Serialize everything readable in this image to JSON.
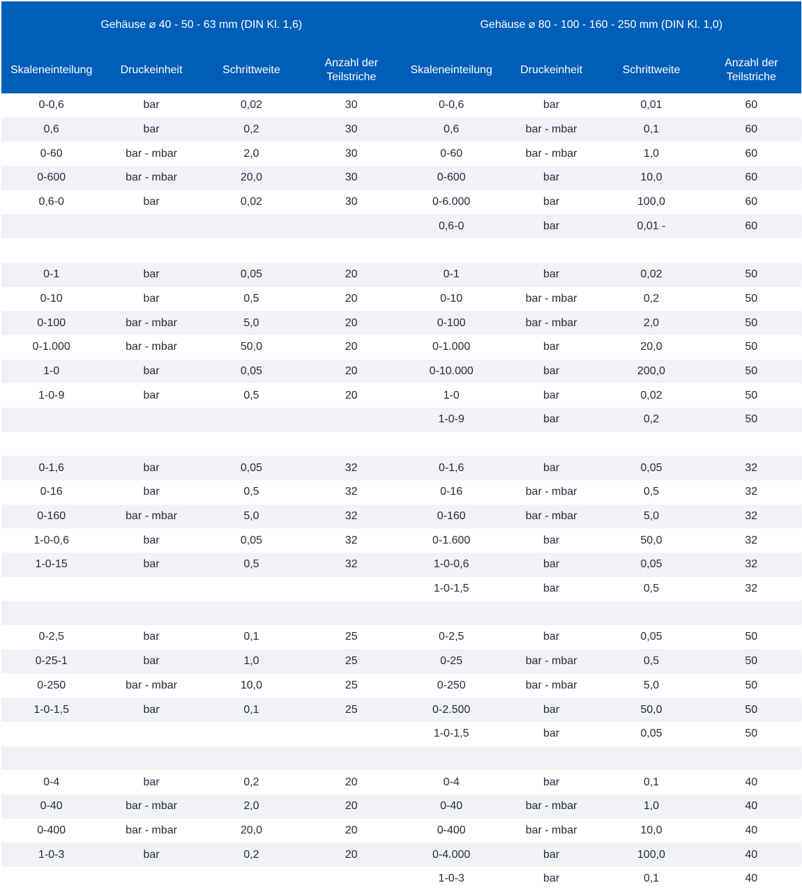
{
  "header": {
    "group_left": "Gehäuse ⌀ 40 - 50 - 63 mm (DIN Kl. 1,6)",
    "group_right": "Gehäuse ⌀ 80 - 100 - 160 - 250 mm (DIN Kl. 1,0)",
    "columns": [
      "Skaleneinteilung",
      "Druckeinheit",
      "Schrittweite",
      "Anzahl der Teilstriche",
      "Skaleneinteilung",
      "Druckeinheit",
      "Schrittweite",
      "Anzahl der Teilstriche"
    ]
  },
  "colors": {
    "header_bg": "#005eb8",
    "stripe": "#f0f2f7",
    "text": "#1d2b3a"
  },
  "rows": [
    [
      "0-0,6",
      "bar",
      "0,02",
      "30",
      "0-0,6",
      "bar",
      "0,01",
      "60"
    ],
    [
      "0,6",
      "bar",
      "0,2",
      "30",
      "0,6",
      "bar - mbar",
      "0,1",
      "60"
    ],
    [
      "0-60",
      "bar - mbar",
      "2,0",
      "30",
      "0-60",
      "bar - mbar",
      "1,0",
      "60"
    ],
    [
      "0-600",
      "bar - mbar",
      "20,0",
      "30",
      "0-600",
      "bar",
      "10,0",
      "60"
    ],
    [
      "0,6-0",
      "bar",
      "0,02",
      "30",
      "0-6.000",
      "bar",
      "100,0",
      "60"
    ],
    [
      "",
      "",
      "",
      "",
      "0,6-0",
      "bar",
      "0,01 -",
      "60"
    ],
    [
      "",
      "",
      "",
      "",
      "",
      "",
      "",
      ""
    ],
    [
      "0-1",
      "bar",
      "0,05",
      "20",
      "0-1",
      "bar",
      "0,02",
      "50"
    ],
    [
      "0-10",
      "bar",
      "0,5",
      "20",
      "0-10",
      "bar - mbar",
      "0,2",
      "50"
    ],
    [
      "0-100",
      "bar - mbar",
      "5,0",
      "20",
      "0-100",
      "bar - mbar",
      "2,0",
      "50"
    ],
    [
      "0-1.000",
      "bar - mbar",
      "50,0",
      "20",
      "0-1.000",
      "bar",
      "20,0",
      "50"
    ],
    [
      "1-0",
      "bar",
      "0,05",
      "20",
      "0-10.000",
      "bar",
      "200,0",
      "50"
    ],
    [
      "1-0-9",
      "bar",
      "0,5",
      "20",
      "1-0",
      "bar",
      "0,02",
      "50"
    ],
    [
      "",
      "",
      "",
      "",
      "1-0-9",
      "bar",
      "0,2",
      "50"
    ],
    [
      "",
      "",
      "",
      "",
      "",
      "",
      "",
      ""
    ],
    [
      "0-1,6",
      "bar",
      "0,05",
      "32",
      "0-1,6",
      "bar",
      "0,05",
      "32"
    ],
    [
      "0-16",
      "bar",
      "0,5",
      "32",
      "0-16",
      "bar - mbar",
      "0,5",
      "32"
    ],
    [
      "0-160",
      "bar - mbar",
      "5,0",
      "32",
      "0-160",
      "bar - mbar",
      "5,0",
      "32"
    ],
    [
      "1-0-0,6",
      "bar",
      "0,05",
      "32",
      "0-1.600",
      "bar",
      "50,0",
      "32"
    ],
    [
      "1-0-15",
      "bar",
      "0,5",
      "32",
      "1-0-0,6",
      "bar",
      "0,05",
      "32"
    ],
    [
      "",
      "",
      "",
      "",
      "1-0-1,5",
      "bar",
      "0,5",
      "32"
    ],
    [
      "",
      "",
      "",
      "",
      "",
      "",
      "",
      ""
    ],
    [
      "0-2,5",
      "bar",
      "0,1",
      "25",
      "0-2,5",
      "bar",
      "0,05",
      "50"
    ],
    [
      "0-25-1",
      "bar",
      "1,0",
      "25",
      "0-25",
      "bar - mbar",
      "0,5",
      "50"
    ],
    [
      "0-250",
      "bar - mbar",
      "10,0",
      "25",
      "0-250",
      "bar - mbar",
      "5,0",
      "50"
    ],
    [
      "1-0-1,5",
      "bar",
      "0,1",
      "25",
      "0-2.500",
      "bar",
      "50,0",
      "50"
    ],
    [
      "",
      "",
      "",
      "",
      "1-0-1,5",
      "bar",
      "0,05",
      "50"
    ],
    [
      "",
      "",
      "",
      "",
      "",
      "",
      "",
      ""
    ],
    [
      "0-4",
      "bar",
      "0,2",
      "20",
      "0-4",
      "bar",
      "0,1",
      "40"
    ],
    [
      "0-40",
      "bar - mbar",
      "2,0",
      "20",
      "0-40",
      "bar - mbar",
      "1,0",
      "40"
    ],
    [
      "0-400",
      "bar - mbar",
      "20,0",
      "20",
      "0-400",
      "bar - mbar",
      "10,0",
      "40"
    ],
    [
      "1-0-3",
      "bar",
      "0,2",
      "20",
      "0-4.000",
      "bar",
      "100,0",
      "40"
    ],
    [
      "",
      "",
      "",
      "",
      "1-0-3",
      "bar",
      "0,1",
      "40"
    ]
  ]
}
